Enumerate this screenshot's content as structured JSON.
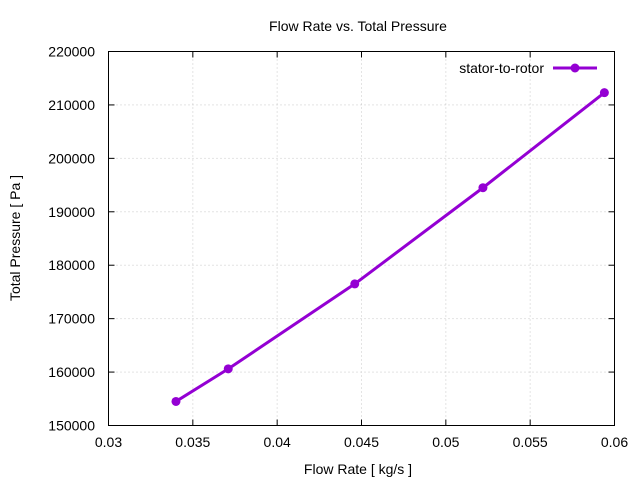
{
  "chart_data": {
    "type": "line",
    "title": "Flow Rate vs. Total Pressure",
    "xlabel": "Flow Rate [ kg/s ]",
    "ylabel": "Total Pressure [ Pa ]",
    "xlim": [
      0.03,
      0.06
    ],
    "ylim": [
      150000,
      220000
    ],
    "x_ticks": [
      0.03,
      0.035,
      0.04,
      0.045,
      0.05,
      0.055,
      0.06
    ],
    "x_tick_labels": [
      "0.03",
      "0.035",
      "0.04",
      "0.045",
      "0.05",
      "0.055",
      "0.06"
    ],
    "y_ticks": [
      150000,
      160000,
      170000,
      180000,
      190000,
      200000,
      210000,
      220000
    ],
    "y_tick_labels": [
      "150000",
      "160000",
      "170000",
      "180000",
      "190000",
      "200000",
      "210000",
      "220000"
    ],
    "grid": true,
    "legend_position": "top-right",
    "series": [
      {
        "name": "stator-to-rotor",
        "color": "#9400d3",
        "x": [
          0.034,
          0.0371,
          0.0446,
          0.0522,
          0.0594
        ],
        "y": [
          154500,
          160600,
          176500,
          194500,
          212300
        ]
      }
    ]
  }
}
